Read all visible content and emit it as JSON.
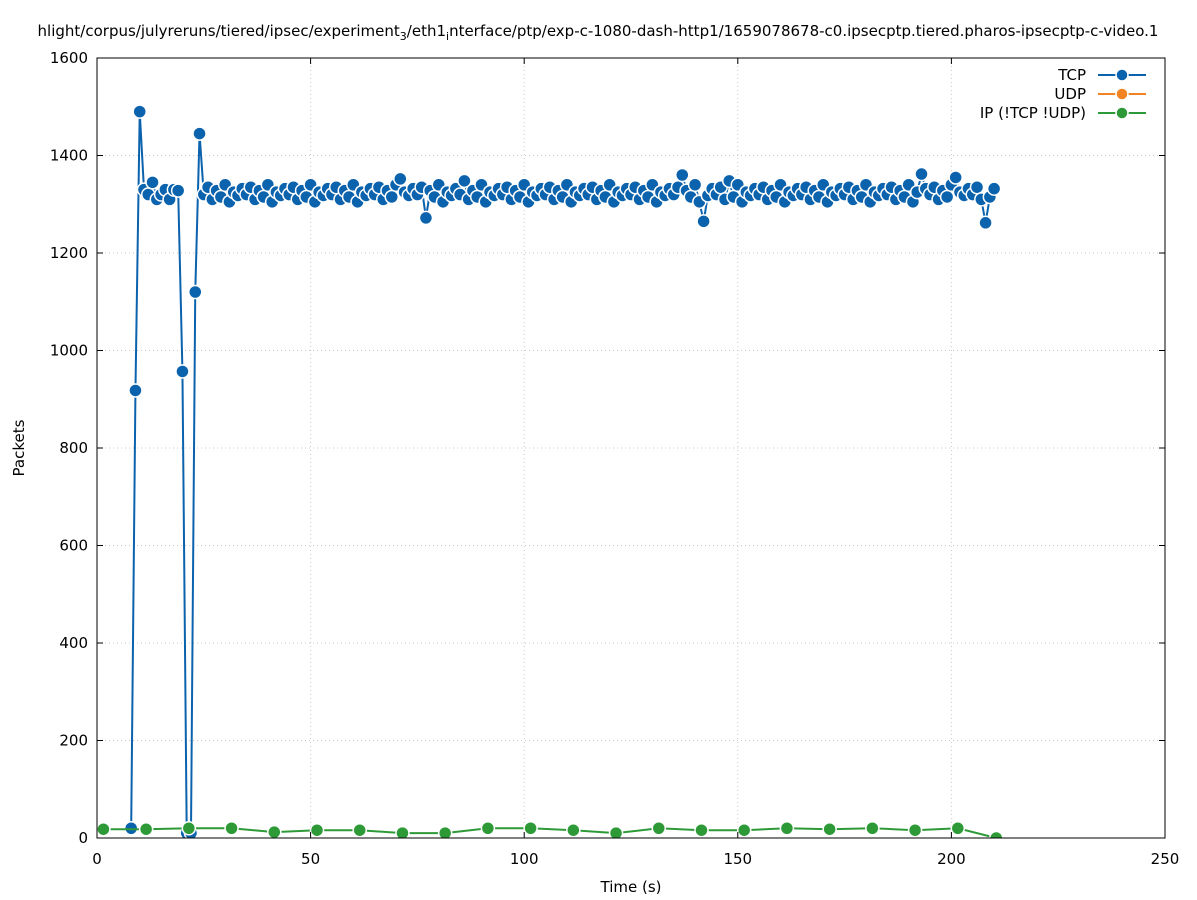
{
  "chart_data": {
    "type": "line",
    "title": [
      "hlight/corpus/julyreruns/tiered/ipsec/experiment",
      "3",
      "/eth1",
      "i",
      "nterface/ptp/exp-c-1080-dash-http1/1659078678-c0.ipsecptp.tiered.pharos-ipsecptp-c-video.1"
    ],
    "x_label": "Time (s)",
    "y_label": "Packets",
    "xlim": [
      0,
      250
    ],
    "xticks": [
      0,
      50,
      100,
      150,
      200,
      250
    ],
    "ylim": [
      0,
      1600
    ],
    "yticks": [
      0,
      200,
      400,
      600,
      800,
      1000,
      1200,
      1400,
      1600
    ],
    "grid": true,
    "legend": "top-right",
    "series": [
      {
        "name": "TCP",
        "color": "#0b62ad",
        "x": [
          8,
          9,
          10,
          11,
          12,
          13,
          14,
          15,
          16,
          17,
          18,
          19,
          20,
          21,
          22,
          23,
          24,
          25,
          26,
          27,
          28,
          29,
          30,
          31,
          32,
          33,
          34,
          35,
          36,
          37,
          38,
          39,
          40,
          41,
          42,
          43,
          44,
          45,
          46,
          47,
          48,
          49,
          50,
          51,
          52,
          53,
          54,
          55,
          56,
          57,
          58,
          59,
          60,
          61,
          62,
          63,
          64,
          65,
          66,
          67,
          68,
          69,
          70,
          71,
          72,
          73,
          74,
          75,
          76,
          77,
          78,
          79,
          80,
          81,
          82,
          83,
          84,
          85,
          86,
          87,
          88,
          89,
          90,
          91,
          92,
          93,
          94,
          95,
          96,
          97,
          98,
          99,
          100,
          101,
          102,
          103,
          104,
          105,
          106,
          107,
          108,
          109,
          110,
          111,
          112,
          113,
          114,
          115,
          116,
          117,
          118,
          119,
          120,
          121,
          122,
          123,
          124,
          125,
          126,
          127,
          128,
          129,
          130,
          131,
          132,
          133,
          134,
          135,
          136,
          137,
          138,
          139,
          140,
          141,
          142,
          143,
          144,
          145,
          146,
          147,
          148,
          149,
          150,
          151,
          152,
          153,
          154,
          155,
          156,
          157,
          158,
          159,
          160,
          161,
          162,
          163,
          164,
          165,
          166,
          167,
          168,
          169,
          170,
          171,
          172,
          173,
          174,
          175,
          176,
          177,
          178,
          179,
          180,
          181,
          182,
          183,
          184,
          185,
          186,
          187,
          188,
          189,
          190,
          191,
          192,
          193,
          194,
          195,
          196,
          197,
          198,
          199,
          200,
          201,
          202,
          203,
          204,
          205,
          206,
          207,
          208,
          209,
          210
        ],
        "values": [
          20,
          918,
          1490,
          1330,
          1320,
          1345,
          1310,
          1320,
          1330,
          1310,
          1330,
          1328,
          957,
          10,
          10,
          1120,
          1445,
          1320,
          1335,
          1310,
          1328,
          1315,
          1340,
          1305,
          1325,
          1318,
          1332,
          1320,
          1335,
          1310,
          1328,
          1315,
          1340,
          1305,
          1325,
          1318,
          1332,
          1320,
          1335,
          1310,
          1328,
          1315,
          1340,
          1305,
          1325,
          1318,
          1332,
          1320,
          1335,
          1310,
          1328,
          1315,
          1340,
          1305,
          1325,
          1318,
          1332,
          1320,
          1335,
          1310,
          1328,
          1315,
          1340,
          1352,
          1325,
          1318,
          1332,
          1320,
          1335,
          1272,
          1328,
          1315,
          1340,
          1305,
          1325,
          1318,
          1332,
          1320,
          1348,
          1310,
          1328,
          1315,
          1340,
          1305,
          1325,
          1318,
          1332,
          1320,
          1335,
          1310,
          1328,
          1315,
          1340,
          1305,
          1325,
          1318,
          1332,
          1320,
          1335,
          1310,
          1328,
          1315,
          1340,
          1305,
          1325,
          1318,
          1332,
          1320,
          1335,
          1310,
          1328,
          1315,
          1340,
          1305,
          1325,
          1318,
          1332,
          1320,
          1335,
          1310,
          1328,
          1315,
          1340,
          1305,
          1325,
          1318,
          1332,
          1320,
          1335,
          1360,
          1328,
          1315,
          1340,
          1305,
          1265,
          1318,
          1332,
          1320,
          1335,
          1310,
          1348,
          1315,
          1340,
          1305,
          1325,
          1318,
          1332,
          1320,
          1335,
          1310,
          1328,
          1315,
          1340,
          1305,
          1325,
          1318,
          1332,
          1320,
          1335,
          1310,
          1328,
          1315,
          1340,
          1305,
          1325,
          1318,
          1332,
          1320,
          1335,
          1310,
          1328,
          1315,
          1340,
          1305,
          1325,
          1318,
          1332,
          1320,
          1335,
          1310,
          1328,
          1315,
          1340,
          1305,
          1325,
          1362,
          1332,
          1320,
          1335,
          1310,
          1328,
          1315,
          1340,
          1355,
          1325,
          1318,
          1332,
          1320,
          1335,
          1310,
          1262,
          1315,
          1332
        ]
      },
      {
        "name": "UDP",
        "color": "#f28322",
        "x": [],
        "values": []
      },
      {
        "name": "IP (!TCP  !UDP)",
        "color": "#2e9a37",
        "x": [
          1.5,
          11.5,
          21.5,
          31.5,
          41.5,
          51.5,
          61.5,
          71.5,
          81.5,
          91.5,
          101.5,
          111.5,
          121.5,
          131.5,
          141.5,
          151.5,
          161.5,
          171.5,
          181.5,
          191.5,
          201.5,
          210.5
        ],
        "values": [
          18,
          18,
          20,
          20,
          12,
          16,
          16,
          10,
          10,
          20,
          20,
          16,
          10,
          20,
          16,
          16,
          20,
          18,
          20,
          16,
          20,
          0
        ]
      }
    ]
  }
}
